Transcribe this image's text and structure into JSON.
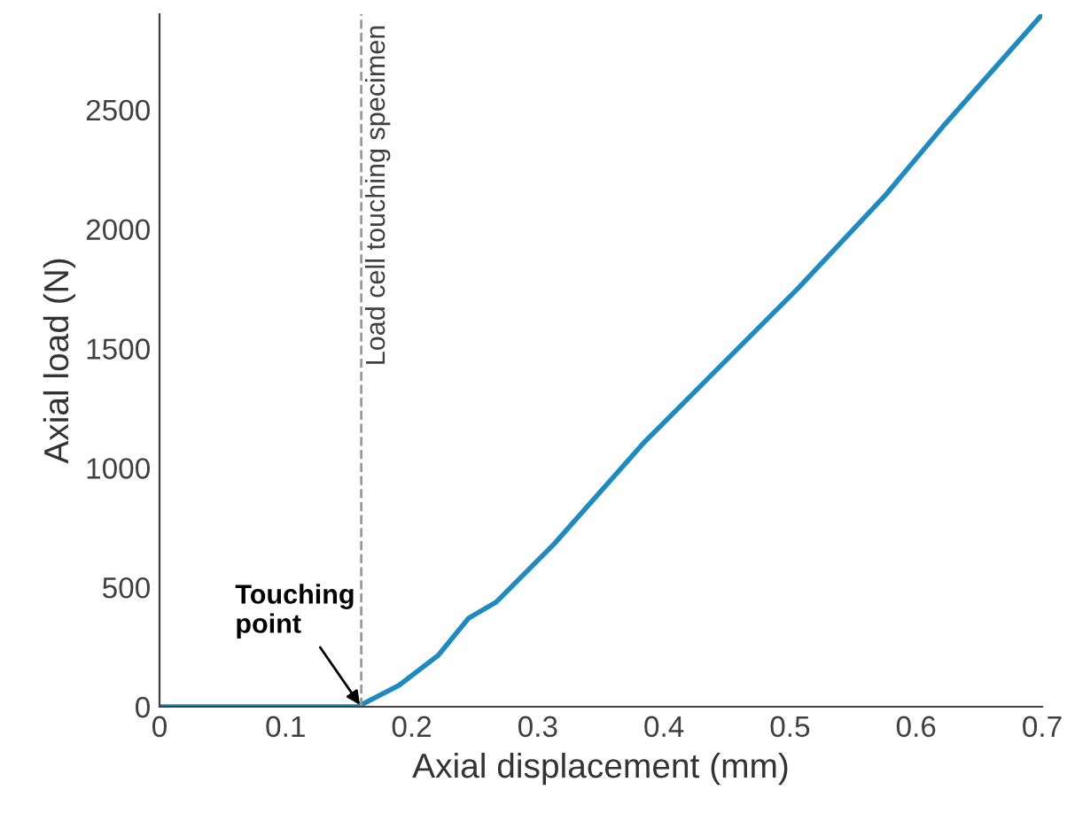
{
  "chart_data": {
    "type": "line",
    "xlabel": "Axial displacement (mm)",
    "ylabel": "Axial load (N)",
    "xlim": [
      0,
      0.7
    ],
    "ylim": [
      0,
      2900
    ],
    "xticks": [
      0,
      0.1,
      0.2,
      0.3,
      0.4,
      0.5,
      0.6,
      0.7
    ],
    "yticks": [
      0,
      500,
      1000,
      1500,
      2000,
      2500
    ],
    "grid": false,
    "legend": false,
    "marker": "none",
    "line_style": "solid",
    "series": [
      {
        "color": "#1f8ac0",
        "x": [
          0,
          0.05,
          0.1,
          0.157,
          0.19,
          0.221,
          0.245,
          0.267,
          0.313,
          0.384,
          0.436,
          0.506,
          0.576,
          0.623,
          0.699
        ],
        "values": [
          0,
          0,
          0,
          0,
          90,
          215,
          370,
          438,
          682,
          1105,
          1380,
          1750,
          2144,
          2440,
          2893
        ]
      }
    ],
    "ref_lines": [
      {
        "axis": "x",
        "value": 0.16,
        "label": "Load cell touching specimen",
        "color": "#999999",
        "line_style": "dashed"
      }
    ],
    "annotations": [
      {
        "text": "Touching\npoint",
        "x": 0.16,
        "y": 0
      }
    ]
  }
}
